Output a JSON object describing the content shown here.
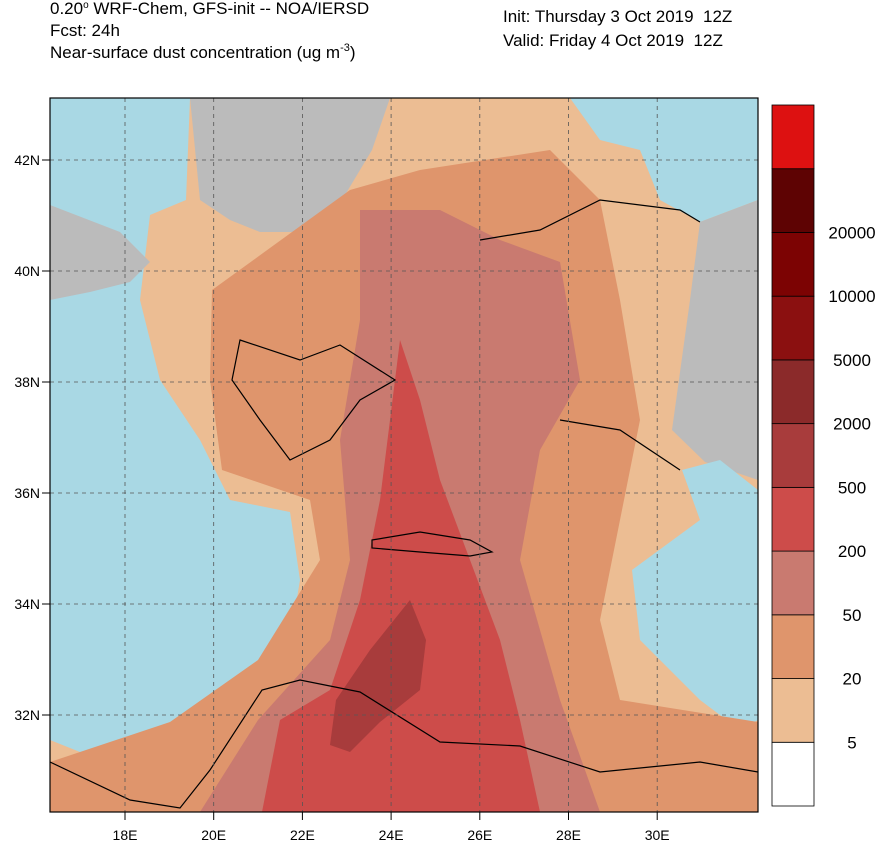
{
  "header": {
    "model_prefix": "0.20",
    "degree_mark": "o",
    "model_rest": " WRF-Chem, GFS-init -- NOA/IERSD",
    "forecast": "Fcst: 24h",
    "variable": "Near-surface dust concentration (ug m",
    "unit_exponent": "-3",
    "variable_close": ")",
    "init": "Init: Thursday 3 Oct 2019  12Z",
    "valid": "Valid: Friday 4 Oct 2019  12Z"
  },
  "map": {
    "lat_labels": [
      "42N",
      "40N",
      "38N",
      "36N",
      "34N",
      "32N"
    ],
    "lon_labels": [
      "18E",
      "20E",
      "22E",
      "24E",
      "26E",
      "28E",
      "30E"
    ]
  },
  "legend": {
    "colors": [
      "#ffffff",
      "#ecbd93",
      "#df956c",
      "#c97a70",
      "#cd4c4a",
      "#a83c3c",
      "#8b2a2a",
      "#8b1010",
      "#7c0303",
      "#5e0303",
      "#dd1111"
    ],
    "levels": [
      "5",
      "20",
      "50",
      "200",
      "500",
      "2000",
      "5000",
      "10000",
      "20000"
    ]
  }
}
